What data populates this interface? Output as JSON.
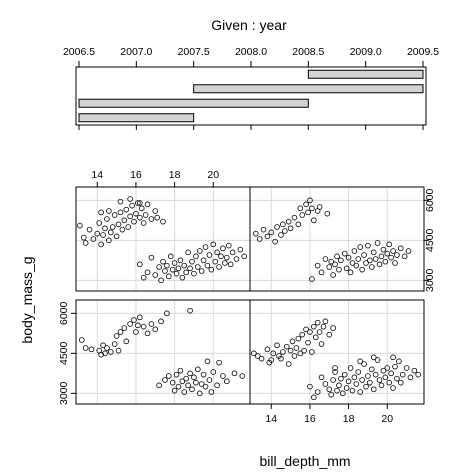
{
  "chart_data": {
    "type": "scatter",
    "title": "Given : year",
    "xlabel": "bill_depth_mm",
    "ylabel": "body_mass_g",
    "given": {
      "axis_ticks": [
        "2006.5",
        "2007.0",
        "2007.5",
        "2008.0",
        "2008.5",
        "2009.0",
        "2009.5"
      ],
      "axis_values": [
        2006.5,
        2007.0,
        2007.5,
        2008.0,
        2008.5,
        2009.0,
        2009.5
      ],
      "xlim": [
        2006.5,
        2009.5
      ],
      "intervals": [
        [
          2006.5,
          2007.5
        ],
        [
          2006.5,
          2008.5
        ],
        [
          2007.5,
          2009.5
        ],
        [
          2008.5,
          2009.5
        ]
      ]
    },
    "x_ticks": [
      "14",
      "16",
      "18",
      "20"
    ],
    "x_tick_values": [
      14,
      16,
      18,
      20
    ],
    "y_ticks": [
      "3000",
      "4500",
      "6000"
    ],
    "y_tick_values": [
      3000,
      4500,
      6000
    ],
    "xlim": [
      12.9,
      21.9
    ],
    "ylim": [
      2600,
      6500
    ],
    "grid": true,
    "panels": [
      {
        "interval": 1,
        "points": [
          [
            13.2,
            5000
          ],
          [
            13.4,
            4700
          ],
          [
            13.7,
            4650
          ],
          [
            14.1,
            4600
          ],
          [
            14.2,
            4450
          ],
          [
            14.3,
            4800
          ],
          [
            14.4,
            4500
          ],
          [
            14.5,
            4700
          ],
          [
            14.7,
            4550
          ],
          [
            14.9,
            4850
          ],
          [
            15.0,
            5150
          ],
          [
            15.1,
            4600
          ],
          [
            15.2,
            5300
          ],
          [
            15.4,
            5450
          ],
          [
            15.5,
            4950
          ],
          [
            15.7,
            5600
          ],
          [
            15.9,
            5750
          ],
          [
            16.0,
            5300
          ],
          [
            16.1,
            5550
          ],
          [
            16.2,
            5850
          ],
          [
            16.4,
            5500
          ],
          [
            16.6,
            5250
          ],
          [
            16.8,
            5600
          ],
          [
            17.0,
            5400
          ],
          [
            17.3,
            5700
          ],
          [
            17.6,
            6000
          ],
          [
            18.8,
            6100
          ],
          [
            17.2,
            3300
          ],
          [
            17.5,
            3500
          ],
          [
            17.7,
            3650
          ],
          [
            17.9,
            3400
          ],
          [
            18.0,
            3100
          ],
          [
            18.1,
            3700
          ],
          [
            18.2,
            3250
          ],
          [
            18.3,
            3850
          ],
          [
            18.4,
            3450
          ],
          [
            18.5,
            3050
          ],
          [
            18.6,
            3550
          ],
          [
            18.7,
            3300
          ],
          [
            18.8,
            3750
          ],
          [
            18.9,
            3150
          ],
          [
            19.0,
            3600
          ],
          [
            19.1,
            3400
          ],
          [
            19.2,
            3900
          ],
          [
            19.3,
            3000
          ],
          [
            19.4,
            3350
          ],
          [
            19.5,
            3700
          ],
          [
            19.6,
            3250
          ],
          [
            19.7,
            4200
          ],
          [
            19.8,
            3500
          ],
          [
            19.9,
            3050
          ],
          [
            20.0,
            3800
          ],
          [
            20.2,
            3300
          ],
          [
            20.3,
            4150
          ],
          [
            20.5,
            3650
          ],
          [
            20.7,
            3450
          ],
          [
            21.1,
            3750
          ],
          [
            21.5,
            3650
          ]
        ]
      },
      {
        "interval": 2,
        "points": [
          [
            13.1,
            4500
          ],
          [
            13.3,
            4400
          ],
          [
            13.5,
            4300
          ],
          [
            13.8,
            4650
          ],
          [
            13.9,
            4150
          ],
          [
            14.0,
            4250
          ],
          [
            14.1,
            4500
          ],
          [
            14.3,
            4800
          ],
          [
            14.4,
            4400
          ],
          [
            14.5,
            4300
          ],
          [
            14.6,
            4550
          ],
          [
            14.8,
            4750
          ],
          [
            14.9,
            4100
          ],
          [
            15.0,
            4600
          ],
          [
            15.1,
            4950
          ],
          [
            15.2,
            4400
          ],
          [
            15.3,
            4700
          ],
          [
            15.4,
            5050
          ],
          [
            15.5,
            4500
          ],
          [
            15.6,
            5200
          ],
          [
            15.7,
            4600
          ],
          [
            15.8,
            5400
          ],
          [
            15.9,
            4900
          ],
          [
            16.0,
            5300
          ],
          [
            16.1,
            4550
          ],
          [
            16.2,
            5500
          ],
          [
            16.3,
            5100
          ],
          [
            16.4,
            5650
          ],
          [
            16.5,
            5300
          ],
          [
            16.6,
            4850
          ],
          [
            16.7,
            5500
          ],
          [
            16.8,
            5700
          ],
          [
            17.0,
            5200
          ],
          [
            17.2,
            5450
          ],
          [
            16.0,
            3250
          ],
          [
            16.2,
            2850
          ],
          [
            16.4,
            3050
          ],
          [
            16.6,
            3600
          ],
          [
            16.8,
            3350
          ],
          [
            17.0,
            3150
          ],
          [
            17.1,
            2950
          ],
          [
            17.2,
            3500
          ],
          [
            17.3,
            3800
          ],
          [
            17.4,
            3100
          ],
          [
            17.5,
            3300
          ],
          [
            17.6,
            3550
          ],
          [
            17.7,
            3000
          ],
          [
            17.8,
            3700
          ],
          [
            17.9,
            3200
          ],
          [
            18.0,
            3450
          ],
          [
            18.1,
            3950
          ],
          [
            18.2,
            3100
          ],
          [
            18.3,
            3600
          ],
          [
            18.4,
            3350
          ],
          [
            18.5,
            3800
          ],
          [
            18.6,
            3050
          ],
          [
            18.7,
            3500
          ],
          [
            18.8,
            4100
          ],
          [
            18.9,
            3250
          ],
          [
            19.0,
            3650
          ],
          [
            19.1,
            3400
          ],
          [
            19.2,
            3900
          ],
          [
            19.3,
            3150
          ],
          [
            19.4,
            3700
          ],
          [
            19.5,
            4250
          ],
          [
            19.6,
            3500
          ],
          [
            19.7,
            3300
          ],
          [
            19.8,
            3850
          ],
          [
            19.9,
            3600
          ],
          [
            20.0,
            3950
          ],
          [
            20.1,
            3400
          ],
          [
            20.2,
            3750
          ],
          [
            20.3,
            3200
          ],
          [
            20.4,
            4000
          ],
          [
            20.5,
            3550
          ],
          [
            20.6,
            4200
          ],
          [
            20.7,
            3400
          ],
          [
            20.8,
            3700
          ],
          [
            21.0,
            3950
          ],
          [
            21.2,
            3600
          ],
          [
            21.4,
            3850
          ],
          [
            21.6,
            3700
          ],
          [
            17.3,
            3950
          ],
          [
            18.6,
            4200
          ],
          [
            19.3,
            4350
          ],
          [
            20.3,
            4350
          ]
        ]
      },
      {
        "interval": 3,
        "points": [
          [
            13.1,
            5050
          ],
          [
            13.3,
            4600
          ],
          [
            13.4,
            4400
          ],
          [
            13.6,
            4900
          ],
          [
            13.8,
            4550
          ],
          [
            14.0,
            4750
          ],
          [
            14.1,
            5150
          ],
          [
            14.2,
            4350
          ],
          [
            14.3,
            4700
          ],
          [
            14.4,
            4950
          ],
          [
            14.5,
            5300
          ],
          [
            14.6,
            4500
          ],
          [
            14.7,
            4800
          ],
          [
            14.8,
            5000
          ],
          [
            14.9,
            5450
          ],
          [
            15.0,
            4650
          ],
          [
            15.1,
            5100
          ],
          [
            15.2,
            5550
          ],
          [
            15.3,
            4900
          ],
          [
            15.4,
            5250
          ],
          [
            15.5,
            5650
          ],
          [
            15.6,
            5000
          ],
          [
            15.7,
            5400
          ],
          [
            15.8,
            5800
          ],
          [
            15.9,
            5200
          ],
          [
            16.0,
            5500
          ],
          [
            16.1,
            5900
          ],
          [
            16.2,
            5350
          ],
          [
            16.3,
            5700
          ],
          [
            16.4,
            5150
          ],
          [
            16.5,
            5450
          ],
          [
            16.6,
            5850
          ],
          [
            16.8,
            5300
          ],
          [
            17.0,
            5600
          ],
          [
            14.2,
            5550
          ],
          [
            14.6,
            5600
          ],
          [
            15.2,
            5950
          ],
          [
            15.7,
            6050
          ],
          [
            16.2,
            5900
          ],
          [
            17.1,
            5350
          ],
          [
            17.4,
            5200
          ],
          [
            16.2,
            3600
          ],
          [
            16.4,
            3100
          ],
          [
            16.6,
            3300
          ],
          [
            16.8,
            3850
          ],
          [
            17.0,
            3200
          ],
          [
            17.2,
            3500
          ],
          [
            17.3,
            3000
          ],
          [
            17.4,
            3700
          ],
          [
            17.5,
            3350
          ],
          [
            17.6,
            3550
          ],
          [
            17.7,
            3150
          ],
          [
            17.8,
            3900
          ],
          [
            17.9,
            3400
          ],
          [
            18.0,
            3650
          ],
          [
            18.1,
            3250
          ],
          [
            18.2,
            3450
          ],
          [
            18.3,
            3750
          ],
          [
            18.4,
            3100
          ],
          [
            18.5,
            3550
          ],
          [
            18.6,
            3300
          ],
          [
            18.7,
            4050
          ],
          [
            18.8,
            3450
          ],
          [
            18.9,
            3700
          ],
          [
            19.0,
            3250
          ],
          [
            19.1,
            3900
          ],
          [
            19.2,
            3500
          ],
          [
            19.3,
            4100
          ],
          [
            19.4,
            3350
          ],
          [
            19.5,
            3750
          ],
          [
            19.6,
            4250
          ],
          [
            19.7,
            3550
          ],
          [
            19.8,
            3950
          ],
          [
            19.9,
            3400
          ],
          [
            20.0,
            4350
          ],
          [
            20.1,
            3700
          ],
          [
            20.2,
            4050
          ],
          [
            20.3,
            3500
          ],
          [
            20.4,
            3900
          ],
          [
            20.5,
            4200
          ],
          [
            20.6,
            3650
          ],
          [
            20.7,
            3850
          ],
          [
            20.8,
            4300
          ],
          [
            20.9,
            3600
          ],
          [
            21.0,
            4050
          ],
          [
            21.2,
            3800
          ],
          [
            21.4,
            4150
          ],
          [
            21.6,
            3900
          ]
        ]
      },
      {
        "interval": 4,
        "points": [
          [
            13.2,
            4750
          ],
          [
            13.4,
            4550
          ],
          [
            13.6,
            4900
          ],
          [
            13.8,
            4650
          ],
          [
            14.0,
            4800
          ],
          [
            14.2,
            4450
          ],
          [
            14.3,
            5000
          ],
          [
            14.5,
            4700
          ],
          [
            14.6,
            5100
          ],
          [
            14.7,
            4850
          ],
          [
            14.9,
            5200
          ],
          [
            15.0,
            4950
          ],
          [
            15.2,
            5350
          ],
          [
            15.4,
            5100
          ],
          [
            15.5,
            5700
          ],
          [
            15.6,
            5450
          ],
          [
            15.8,
            5850
          ],
          [
            15.9,
            5550
          ],
          [
            16.0,
            6000
          ],
          [
            16.1,
            5700
          ],
          [
            16.2,
            5250
          ],
          [
            16.4,
            5600
          ],
          [
            16.5,
            5750
          ],
          [
            16.9,
            5500
          ],
          [
            16.1,
            3050
          ],
          [
            16.4,
            3550
          ],
          [
            16.6,
            3300
          ],
          [
            16.8,
            3800
          ],
          [
            17.0,
            3500
          ],
          [
            17.1,
            3700
          ],
          [
            17.2,
            3200
          ],
          [
            17.3,
            3600
          ],
          [
            17.4,
            3900
          ],
          [
            17.5,
            3400
          ],
          [
            17.6,
            3750
          ],
          [
            17.8,
            4000
          ],
          [
            17.9,
            3450
          ],
          [
            18.0,
            3850
          ],
          [
            18.1,
            3300
          ],
          [
            18.2,
            3650
          ],
          [
            18.3,
            4100
          ],
          [
            18.4,
            3550
          ],
          [
            18.5,
            3800
          ],
          [
            18.6,
            4250
          ],
          [
            18.7,
            3400
          ],
          [
            18.8,
            3950
          ],
          [
            18.9,
            3650
          ],
          [
            19.0,
            4300
          ],
          [
            19.1,
            3750
          ],
          [
            19.2,
            3500
          ],
          [
            19.3,
            4050
          ],
          [
            19.4,
            3800
          ],
          [
            19.5,
            4400
          ],
          [
            19.6,
            3600
          ],
          [
            19.7,
            3900
          ],
          [
            19.8,
            4150
          ],
          [
            19.9,
            3700
          ],
          [
            20.0,
            4000
          ],
          [
            20.1,
            4350
          ],
          [
            20.2,
            3850
          ],
          [
            20.3,
            4100
          ],
          [
            20.4,
            3650
          ],
          [
            20.5,
            3950
          ],
          [
            20.7,
            4200
          ],
          [
            20.9,
            3900
          ],
          [
            21.1,
            4100
          ]
        ]
      }
    ]
  }
}
